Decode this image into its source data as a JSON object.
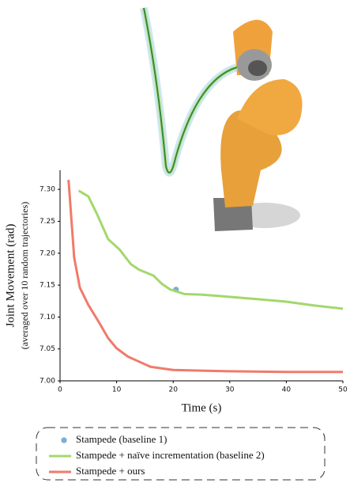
{
  "chart_data": {
    "type": "line",
    "xlabel": "Time (s)",
    "ylabel": [
      "Joint Movement (rad)",
      "(averaged over 10 random trajectories)"
    ],
    "xlim": [
      0,
      50
    ],
    "xticks": [
      0,
      10,
      20,
      30,
      40,
      50
    ],
    "ylim": [
      7.0,
      7.33
    ],
    "yticks": [
      {
        "value": 7.0,
        "label": "7.00"
      },
      7.05,
      {
        "value": 7.1,
        "label": "7.10"
      },
      7.15,
      {
        "value": 7.2,
        "label": "7.20"
      },
      7.25,
      {
        "value": 7.3,
        "label": "7.30"
      }
    ],
    "series": [
      {
        "name": "Stampede (baseline 1)",
        "color": "#7bafd4",
        "marker": "point",
        "x": [
          20.5
        ],
        "values": [
          7.143
        ]
      },
      {
        "name": "Stampede + naïve incrementation (baseline 2)",
        "color": "#a3d86c",
        "marker": "line",
        "x": [
          3.3,
          5,
          6.5,
          8.5,
          10.5,
          12.5,
          14,
          16.5,
          18,
          19.5,
          22,
          25,
          28,
          35,
          40,
          45,
          50
        ],
        "values": [
          7.298,
          7.289,
          7.262,
          7.222,
          7.206,
          7.183,
          7.174,
          7.165,
          7.152,
          7.143,
          7.136,
          7.135,
          7.133,
          7.128,
          7.124,
          7.118,
          7.113
        ]
      },
      {
        "name": "Stampede + ours",
        "color": "#ef7b6b",
        "marker": "line",
        "x": [
          1.5,
          2.5,
          3.5,
          5,
          7,
          8.5,
          10,
          12,
          14,
          16,
          20,
          25,
          30,
          40,
          50
        ],
        "values": [
          7.315,
          7.193,
          7.146,
          7.119,
          7.09,
          7.067,
          7.051,
          7.038,
          7.03,
          7.022,
          7.017,
          7.016,
          7.015,
          7.014,
          7.014
        ]
      }
    ]
  }
}
